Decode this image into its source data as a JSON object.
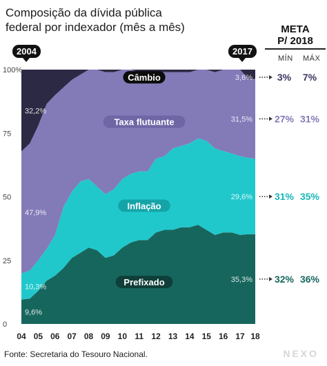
{
  "header": {
    "title_line1": "Composição da dívida pública",
    "title_line2": "federal por indexador (mês a mês)",
    "start_badge": "2004",
    "end_badge": "2017"
  },
  "meta": {
    "title_line1": "META",
    "title_line2": "P/ 2018",
    "min_label": "MÍN",
    "max_label": "MÁX"
  },
  "footer": {
    "source": "Fonte: Secretaria do Tesouro Nacional.",
    "logo": "NEXO"
  },
  "chart_data": {
    "type": "area",
    "stacked": true,
    "x": [
      "2004",
      "2004.5",
      "2005",
      "2005.5",
      "2006",
      "2006.5",
      "2007",
      "2007.5",
      "2008",
      "2008.5",
      "2009",
      "2009.5",
      "2010",
      "2010.5",
      "2011",
      "2011.5",
      "2012",
      "2012.5",
      "2013",
      "2013.5",
      "2014",
      "2014.5",
      "2015",
      "2015.5",
      "2016",
      "2016.5",
      "2017",
      "2017.5",
      "2017.9"
    ],
    "xlim": [
      2004,
      2017.9
    ],
    "x_tick_labels": [
      "04",
      "05",
      "06",
      "07",
      "08",
      "09",
      "10",
      "11",
      "12",
      "13",
      "14",
      "15",
      "16",
      "17",
      "18"
    ],
    "ylim": [
      0,
      100
    ],
    "y_ticks": [
      0,
      25,
      50,
      75,
      100
    ],
    "y_tick_labels": [
      "0",
      "25",
      "50",
      "75",
      "100%"
    ],
    "series": [
      {
        "name": "Prefixado",
        "color": "#17665d",
        "label_color": "#17665d",
        "values": [
          9.6,
          10,
          13,
          17,
          19,
          22,
          26,
          28,
          30,
          29,
          26,
          27,
          30,
          32,
          33,
          33,
          36,
          37,
          37,
          38,
          38,
          39,
          37,
          35,
          36,
          36,
          35,
          35.3,
          35.3
        ],
        "start_label": "9,6%",
        "end_label": "35,3%",
        "meta_min": "32%",
        "meta_max": "36%"
      },
      {
        "name": "Inflação",
        "color": "#20c8cc",
        "label_color": "#16b7ba",
        "values": [
          10.3,
          11,
          12,
          12.5,
          16,
          24,
          26,
          28,
          27,
          25,
          25,
          26,
          27,
          27,
          27,
          27,
          29,
          29,
          32,
          32,
          33,
          34,
          35,
          34,
          32,
          31,
          31,
          30,
          29.6
        ],
        "start_label": "10,3%",
        "end_label": "29,6%",
        "meta_min": "31%",
        "meta_max": "35%"
      },
      {
        "name": "Taxa flutuante",
        "color": "#837ab8",
        "label_color": "#837ab8",
        "values": [
          47.9,
          50,
          53,
          57,
          55,
          47,
          44,
          42,
          43,
          46,
          48,
          46,
          43,
          41,
          39,
          39,
          34,
          33,
          30,
          29,
          28,
          27,
          28,
          30,
          32,
          33,
          34,
          31,
          31.5
        ],
        "start_label": "47,9%",
        "end_label": "31,5%",
        "meta_min": "27%",
        "meta_max": "31%"
      },
      {
        "name": "Câmbio",
        "color": "#2c2944",
        "label_color": "#3a3560",
        "values": [
          32.2,
          29,
          22,
          13.5,
          10,
          7,
          4,
          2,
          0,
          0,
          1,
          1,
          0,
          0,
          1,
          1,
          1,
          1,
          1,
          1,
          1,
          0,
          0,
          1,
          0,
          0,
          0,
          3.7,
          3.6
        ],
        "start_label": "32,2%",
        "end_label": "3,6%",
        "meta_min": "3%",
        "meta_max": "7%"
      }
    ]
  }
}
